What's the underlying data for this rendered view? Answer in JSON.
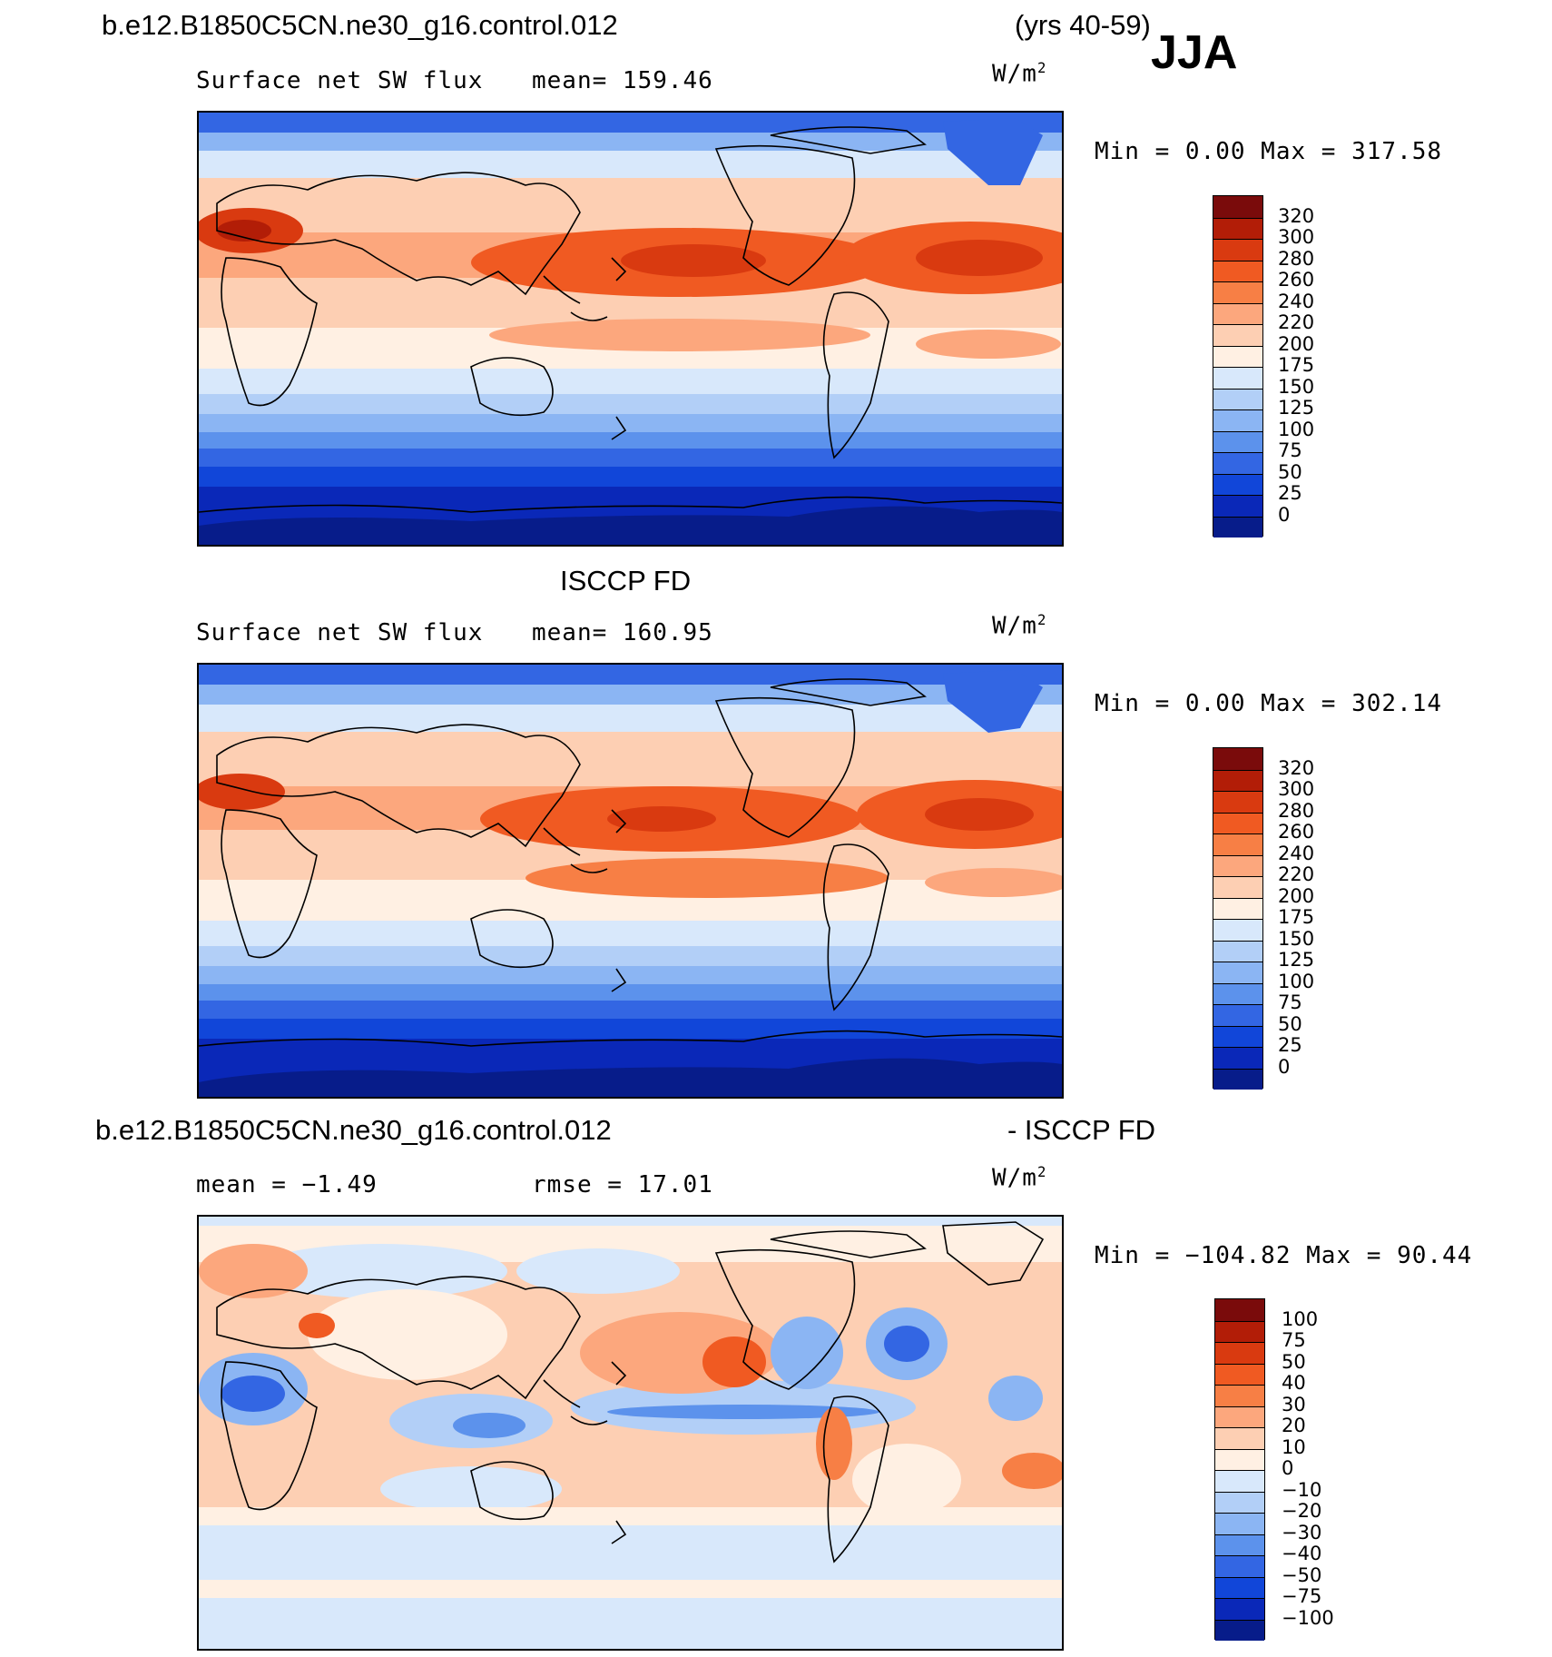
{
  "header": {
    "case_name": "b.e12.B1850C5CN.ne30_g16.control.012",
    "years": "(yrs 40-59)",
    "season": "JJA"
  },
  "chart_data": [
    {
      "type": "heatmap",
      "title": "Surface net SW flux",
      "mean_text": "mean= 159.46",
      "units_base": "W/m",
      "units_exp": "2",
      "minmax_text": "Min =    0.00 Max = 317.58",
      "min": 0.0,
      "max": 317.58,
      "mean": 159.46,
      "colorbar_levels": [
        "320",
        "300",
        "280",
        "260",
        "240",
        "220",
        "200",
        "175",
        "150",
        "125",
        "100",
        "75",
        "50",
        "25",
        "0"
      ],
      "colorbar_colors": [
        "#7a0b0b",
        "#b21d07",
        "#d93a10",
        "#f05a22",
        "#f77f45",
        "#fca77d",
        "#fdcfb3",
        "#fff0e3",
        "#d8e8fb",
        "#b2cff7",
        "#8bb5f3",
        "#5c92ec",
        "#3366e3",
        "#1146d9",
        "#0a28b8",
        "#071c8a"
      ],
      "zones": [
        {
          "lat_band": "high north",
          "value": 80
        },
        {
          "lat_band": "north subtropics",
          "value": 230
        },
        {
          "lat_band": "tropics",
          "value": 190
        },
        {
          "lat_band": "south subtropics",
          "value": 140
        },
        {
          "lat_band": "southern ocean",
          "value": 40
        },
        {
          "lat_band": "antarctica",
          "value": 5
        }
      ]
    },
    {
      "type": "heatmap",
      "subtitle": "ISCCP FD",
      "title": "Surface net SW flux",
      "mean_text": "mean= 160.95",
      "units_base": "W/m",
      "units_exp": "2",
      "minmax_text": "Min =    0.00 Max = 302.14",
      "min": 0.0,
      "max": 302.14,
      "mean": 160.95,
      "colorbar_levels": [
        "320",
        "300",
        "280",
        "260",
        "240",
        "220",
        "200",
        "175",
        "150",
        "125",
        "100",
        "75",
        "50",
        "25",
        "0"
      ],
      "colorbar_colors": [
        "#7a0b0b",
        "#b21d07",
        "#d93a10",
        "#f05a22",
        "#f77f45",
        "#fca77d",
        "#fdcfb3",
        "#fff0e3",
        "#d8e8fb",
        "#b2cff7",
        "#8bb5f3",
        "#5c92ec",
        "#3366e3",
        "#1146d9",
        "#0a28b8",
        "#071c8a"
      ]
    },
    {
      "type": "heatmap",
      "title_left": "b.e12.B1850C5CN.ne30_g16.control.012",
      "title_right": "- ISCCP FD",
      "mean_text": "mean =  −1.49",
      "rmse_text": "rmse =   17.01",
      "units_base": "W/m",
      "units_exp": "2",
      "minmax_text": "Min = −104.82 Max =   90.44",
      "min": -104.82,
      "max": 90.44,
      "mean": -1.49,
      "rmse": 17.01,
      "colorbar_levels": [
        "100",
        "75",
        "50",
        "40",
        "30",
        "20",
        "10",
        "0",
        "−10",
        "−20",
        "−30",
        "−40",
        "−50",
        "−75",
        "−100"
      ],
      "colorbar_colors": [
        "#7a0b0b",
        "#b21d07",
        "#d93a10",
        "#f05a22",
        "#f77f45",
        "#fca77d",
        "#fdcfb3",
        "#fff0e3",
        "#d8e8fb",
        "#b2cff7",
        "#8bb5f3",
        "#5c92ec",
        "#3366e3",
        "#1146d9",
        "#0a28b8",
        "#071c8a"
      ]
    }
  ]
}
